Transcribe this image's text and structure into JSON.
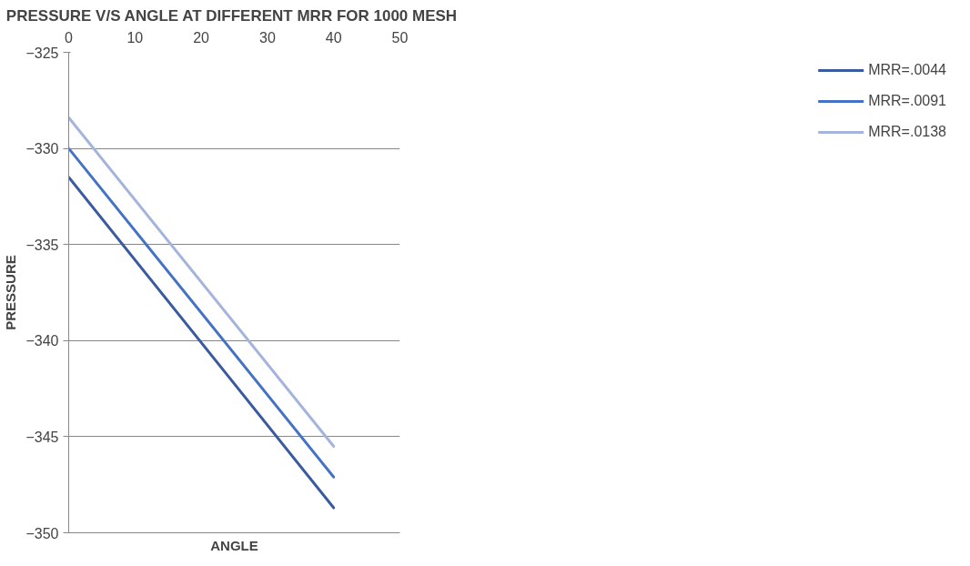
{
  "chart_data": {
    "type": "line",
    "title": "PRESSURE V/S ANGLE AT DIFFERENT MRR FOR 1000  MESH",
    "xlabel": "ANGLE",
    "ylabel": "PRESSURE",
    "x": [
      0,
      40
    ],
    "series": [
      {
        "name": "MRR=.0044",
        "color": "#3a5ba0",
        "values": [
          -331.5,
          -348.7
        ]
      },
      {
        "name": "MRR=.0091",
        "color": "#4472c4",
        "values": [
          -330.0,
          -347.1
        ]
      },
      {
        "name": "MRR=.0138",
        "color": "#a5b4dc",
        "values": [
          -328.4,
          -345.5
        ]
      }
    ],
    "xlim": [
      0,
      50
    ],
    "xticks": [
      0,
      10,
      20,
      30,
      40,
      50
    ],
    "ylim": [
      -350,
      -325
    ],
    "yticks": [
      -350,
      -345,
      -340,
      -335,
      -330,
      -325
    ],
    "grid": "y",
    "legend": "right",
    "marker": "none",
    "line_style": "solid"
  }
}
